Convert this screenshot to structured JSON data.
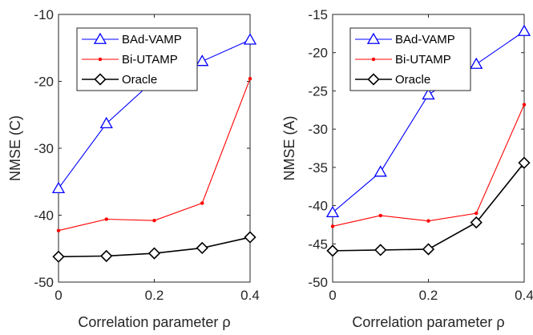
{
  "chart_data": [
    {
      "type": "line",
      "xlabel": "Correlation parameter ρ",
      "ylabel": "NMSE (C)",
      "xlim": [
        0,
        0.4
      ],
      "ylim": [
        -50,
        -10
      ],
      "xticks": [
        "0",
        "0.2",
        "0.4"
      ],
      "yticks": [
        "-10",
        "-20",
        "-30",
        "-40",
        "-50"
      ],
      "grid": false,
      "legend_position": "top-left",
      "x": [
        0,
        0.1,
        0.2,
        0.3,
        0.4
      ],
      "series": [
        {
          "name": "BAd-VAMP",
          "color": "#0000ff",
          "marker": "triangle",
          "values": [
            -36.0,
            -26.3,
            -19.8,
            -17.0,
            -13.8
          ]
        },
        {
          "name": "Bi-UTAMP",
          "color": "#ff0000",
          "marker": "dot",
          "values": [
            -42.3,
            -40.6,
            -40.8,
            -38.2,
            -19.6
          ]
        },
        {
          "name": "Oracle",
          "color": "#000000",
          "marker": "diamond",
          "values": [
            -46.2,
            -46.1,
            -45.7,
            -44.9,
            -43.3
          ]
        }
      ]
    },
    {
      "type": "line",
      "xlabel": "Correlation parameter ρ",
      "ylabel": "NMSE (A)",
      "xlim": [
        0,
        0.4
      ],
      "ylim": [
        -50,
        -15
      ],
      "xticks": [
        "0",
        "0.2",
        "0.4"
      ],
      "yticks": [
        "-15",
        "-20",
        "-25",
        "-30",
        "-35",
        "-40",
        "-45",
        "-50"
      ],
      "grid": false,
      "legend_position": "top-left",
      "x": [
        0,
        0.1,
        0.2,
        0.3,
        0.4
      ],
      "series": [
        {
          "name": "BAd-VAMP",
          "color": "#0000ff",
          "marker": "triangle",
          "values": [
            -40.9,
            -35.6,
            -25.5,
            -21.5,
            -17.2
          ]
        },
        {
          "name": "Bi-UTAMP",
          "color": "#ff0000",
          "marker": "dot",
          "values": [
            -42.7,
            -41.3,
            -42.0,
            -41.0,
            -26.8
          ]
        },
        {
          "name": "Oracle",
          "color": "#000000",
          "marker": "diamond",
          "values": [
            -45.9,
            -45.8,
            -45.7,
            -42.2,
            -34.4
          ]
        }
      ]
    }
  ]
}
